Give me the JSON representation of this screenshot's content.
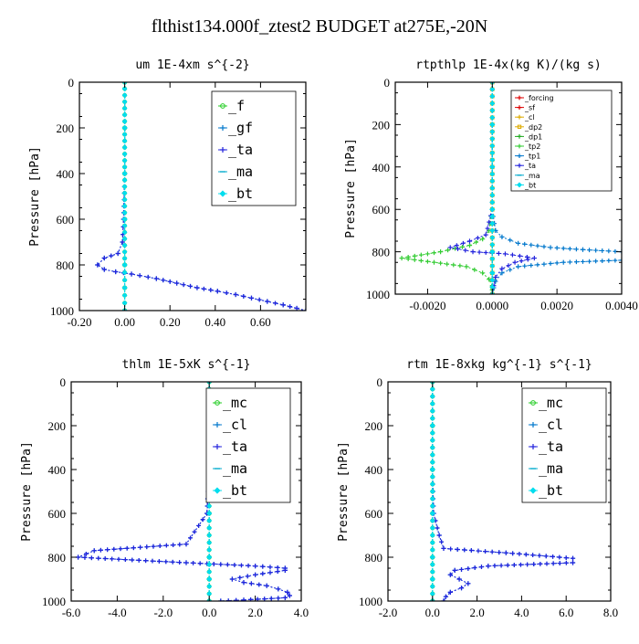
{
  "title": "flthist134.000f_ztest2  BUDGET at275E,-20N",
  "chart_data": [
    {
      "type": "line",
      "title": "um    1E-4xm  s^{-2}",
      "ylabel": "Pressure [hPa]",
      "xlim": [
        -0.2,
        0.8
      ],
      "ylim": [
        1000,
        0
      ],
      "xticks": [
        -0.2,
        0.0,
        0.2,
        0.4,
        0.6
      ],
      "xtick_labels": [
        "-0.20",
        "0.00",
        "0.20",
        "0.40",
        "0.60"
      ],
      "yticks": [
        0,
        200,
        400,
        600,
        800,
        1000
      ],
      "ytick_labels": [
        "0",
        "200",
        "400",
        "600",
        "800",
        "1000"
      ],
      "legend": "top-right",
      "legend_size": "large",
      "series": [
        {
          "name": "_f",
          "color": "#22cc22",
          "marker": "circle",
          "x": [
            0.0,
            0.0,
            0.0,
            0.0,
            0.0,
            0.0,
            0.0
          ],
          "y": [
            0,
            200,
            400,
            600,
            800,
            900,
            1000
          ]
        },
        {
          "name": "_gf",
          "color": "#0077cc",
          "marker": "plus",
          "x": [
            0,
            0,
            0,
            -0.005,
            -0.01,
            -0.03,
            -0.09,
            -0.12,
            -0.09,
            -0.04,
            0.03,
            0.14,
            0.23,
            0.32,
            0.41,
            0.49,
            0.56,
            0.63,
            0.7,
            0.76,
            0.8
          ],
          "y": [
            0,
            200,
            400,
            600,
            700,
            750,
            770,
            800,
            820,
            830,
            840,
            860,
            880,
            900,
            915,
            930,
            945,
            960,
            975,
            990,
            1000
          ]
        },
        {
          "name": "_ta",
          "color": "#2222dd",
          "marker": "plus",
          "x": [
            0,
            0,
            0,
            -0.005,
            -0.01,
            -0.03,
            -0.09,
            -0.12,
            -0.09,
            -0.04,
            0.03,
            0.14,
            0.23,
            0.32,
            0.41,
            0.49,
            0.56,
            0.63,
            0.7,
            0.76,
            0.8
          ],
          "y": [
            0,
            200,
            400,
            600,
            700,
            750,
            770,
            800,
            820,
            830,
            840,
            860,
            880,
            900,
            915,
            930,
            945,
            960,
            975,
            990,
            1000
          ]
        },
        {
          "name": "_ma",
          "color": "#00aacc",
          "marker": "dash",
          "x": [
            0.0,
            0.0,
            0.0,
            0.0,
            0.0,
            0.0,
            0.0
          ],
          "y": [
            0,
            200,
            400,
            600,
            800,
            900,
            1000
          ]
        },
        {
          "name": "_bt",
          "color": "#00ddee",
          "marker": "diamond",
          "x": [
            0.0,
            0.0,
            0.0,
            0.0,
            0.0,
            0.0,
            0.0
          ],
          "y": [
            0,
            200,
            400,
            600,
            800,
            900,
            1000
          ]
        }
      ]
    },
    {
      "type": "line",
      "title": "rtpthlp   1E-4x(kg K)/(kg s)",
      "ylabel": "Pressure [hPa]",
      "xlim": [
        -0.003,
        0.004
      ],
      "ylim": [
        1000,
        0
      ],
      "xticks": [
        -0.002,
        0.0,
        0.002,
        0.004
      ],
      "xtick_labels": [
        "-0.0020",
        "0.0000",
        "0.0020",
        "0.0040"
      ],
      "yticks": [
        0,
        200,
        400,
        600,
        800,
        1000
      ],
      "ytick_labels": [
        "0",
        "200",
        "400",
        "600",
        "800",
        "1000"
      ],
      "legend": "top-right",
      "legend_size": "small",
      "series": [
        {
          "name": "_forcing",
          "color": "#dd0000",
          "marker": "plus",
          "x": [
            0,
            0,
            0,
            0,
            0,
            0,
            0
          ],
          "y": [
            0,
            200,
            400,
            600,
            800,
            900,
            1000
          ]
        },
        {
          "name": "_sf",
          "color": "#dd0000",
          "marker": "plus",
          "x": [
            0,
            0,
            0,
            0,
            0,
            0,
            0
          ],
          "y": [
            0,
            200,
            400,
            600,
            800,
            900,
            1000
          ]
        },
        {
          "name": "_cl",
          "color": "#ddaa00",
          "marker": "plus",
          "x": [
            0,
            0,
            0,
            0,
            0,
            0,
            0
          ],
          "y": [
            0,
            200,
            400,
            600,
            800,
            900,
            1000
          ]
        },
        {
          "name": "_dp2",
          "color": "#ddaa00",
          "marker": "square",
          "x": [
            0,
            0,
            0,
            0,
            0,
            0,
            0
          ],
          "y": [
            0,
            200,
            400,
            600,
            800,
            900,
            1000
          ]
        },
        {
          "name": "_dp1",
          "color": "#22aa22",
          "marker": "plus",
          "x": [
            0,
            0,
            0,
            0,
            0,
            0,
            0
          ],
          "y": [
            0,
            200,
            400,
            600,
            800,
            900,
            1000
          ]
        },
        {
          "name": "_tp2",
          "color": "#33cc33",
          "marker": "plus",
          "x": [
            0,
            0,
            0,
            0,
            -0.0001,
            -0.0003,
            -0.0007,
            -0.0016,
            -0.0028,
            -0.0018,
            -0.0008,
            -0.0003,
            -0.0001,
            0,
            0,
            0
          ],
          "y": [
            0,
            200,
            400,
            600,
            700,
            740,
            770,
            800,
            830,
            850,
            870,
            900,
            930,
            960,
            980,
            1000
          ]
        },
        {
          "name": "_tp1",
          "color": "#0077cc",
          "marker": "plus",
          "x": [
            0,
            0,
            0,
            0,
            0.0001,
            0.0003,
            0.0008,
            0.0018,
            0.0028,
            0.004,
            0.0045,
            0.004,
            0.0022,
            0.0008,
            0.0003,
            0.0001,
            0
          ],
          "y": [
            0,
            200,
            400,
            600,
            700,
            730,
            760,
            780,
            790,
            800,
            825,
            840,
            850,
            870,
            900,
            940,
            1000
          ]
        },
        {
          "name": "_ta",
          "color": "#2222dd",
          "marker": "plus",
          "x": [
            0,
            0,
            0,
            0,
            -0.0002,
            -0.0007,
            -0.0013,
            -0.0006,
            0.0004,
            0.0013,
            0.0007,
            0.0003,
            0.0001,
            0
          ],
          "y": [
            0,
            200,
            400,
            600,
            720,
            750,
            780,
            800,
            810,
            830,
            850,
            880,
            920,
            1000
          ]
        },
        {
          "name": "_ma",
          "color": "#00aacc",
          "marker": "dash",
          "x": [
            0,
            0,
            0,
            0,
            0,
            0,
            0
          ],
          "y": [
            0,
            200,
            400,
            600,
            800,
            900,
            1000
          ]
        },
        {
          "name": "_bt",
          "color": "#00ddee",
          "marker": "diamond",
          "x": [
            0,
            0,
            0,
            0,
            0,
            0,
            0
          ],
          "y": [
            0,
            200,
            400,
            600,
            800,
            900,
            1000
          ]
        }
      ]
    },
    {
      "type": "line",
      "title": "thlm   1E-5xK  s^{-1}",
      "ylabel": "Pressure [hPa]",
      "xlim": [
        -6.0,
        4.0
      ],
      "ylim": [
        1000,
        0
      ],
      "xticks": [
        -6,
        -4,
        -2,
        0,
        2,
        4
      ],
      "xtick_labels": [
        "-6.0",
        "-4.0",
        "-2.0",
        "0.0",
        "2.0",
        "4.0"
      ],
      "yticks": [
        0,
        200,
        400,
        600,
        800,
        1000
      ],
      "ytick_labels": [
        "0",
        "200",
        "400",
        "600",
        "800",
        "1000"
      ],
      "legend": "top-right",
      "legend_size": "large",
      "series": [
        {
          "name": "_mc",
          "color": "#22cc22",
          "marker": "circle",
          "x": [
            0.0,
            0.0,
            0.0,
            0.0,
            0.0,
            0.0,
            0.0
          ],
          "y": [
            0,
            200,
            400,
            600,
            800,
            900,
            1000
          ]
        },
        {
          "name": "_cl",
          "color": "#0077cc",
          "marker": "plus",
          "x": [
            0,
            0,
            0,
            -0.1,
            -1.0,
            -5.0,
            -5.7,
            -1.0,
            2.0,
            3.3,
            3.3,
            2.0,
            1.0,
            1.5,
            2.5,
            3.0,
            3.4,
            3.5,
            3.3,
            1.5,
            0.5
          ],
          "y": [
            0,
            200,
            400,
            600,
            740,
            770,
            800,
            825,
            840,
            850,
            860,
            880,
            900,
            915,
            930,
            945,
            960,
            975,
            985,
            995,
            1000
          ]
        },
        {
          "name": "_ta",
          "color": "#2222dd",
          "marker": "plus",
          "x": [
            0,
            0,
            0,
            -0.1,
            -1.0,
            -5.0,
            -5.7,
            -1.0,
            2.0,
            3.3,
            3.3,
            2.0,
            1.0,
            1.5,
            2.5,
            3.0,
            3.4,
            3.5,
            3.3,
            1.5,
            0.5
          ],
          "y": [
            0,
            200,
            400,
            600,
            740,
            770,
            800,
            825,
            840,
            850,
            860,
            880,
            900,
            915,
            930,
            945,
            960,
            975,
            985,
            995,
            1000
          ]
        },
        {
          "name": "_ma",
          "color": "#00aacc",
          "marker": "dash",
          "x": [
            0.0,
            0.0,
            0.0,
            0.0,
            0.0,
            0.0,
            0.0
          ],
          "y": [
            0,
            200,
            400,
            600,
            800,
            900,
            1000
          ]
        },
        {
          "name": "_bt",
          "color": "#00ddee",
          "marker": "diamond",
          "x": [
            0.0,
            0.0,
            0.0,
            0.0,
            0.0,
            0.0,
            0.0
          ],
          "y": [
            0,
            200,
            400,
            600,
            800,
            900,
            1000
          ]
        }
      ]
    },
    {
      "type": "line",
      "title": "rtm   1E-8xkg kg^{-1} s^{-1}",
      "ylabel": "Pressure [hPa]",
      "xlim": [
        -2.0,
        8.0
      ],
      "ylim": [
        1000,
        0
      ],
      "xticks": [
        -2,
        0,
        2,
        4,
        6,
        8
      ],
      "xtick_labels": [
        "-2.0",
        "0.0",
        "2.0",
        "4.0",
        "6.0",
        "8.0"
      ],
      "yticks": [
        0,
        200,
        400,
        600,
        800,
        1000
      ],
      "ytick_labels": [
        "0",
        "200",
        "400",
        "600",
        "800",
        "1000"
      ],
      "legend": "top-right",
      "legend_size": "large",
      "series": [
        {
          "name": "_mc",
          "color": "#22cc22",
          "marker": "circle",
          "x": [
            0.0,
            0.0,
            0.0,
            0.0,
            0.0,
            0.0,
            0.0
          ],
          "y": [
            0,
            200,
            400,
            600,
            800,
            900,
            1000
          ]
        },
        {
          "name": "_cl",
          "color": "#0077cc",
          "marker": "plus",
          "x": [
            0,
            0,
            0,
            0.05,
            0.3,
            0.5,
            3.3,
            6.3,
            6.3,
            2.5,
            1.0,
            0.8,
            1.2,
            1.6,
            1.3,
            0.8,
            0.6,
            0.5
          ],
          "y": [
            0,
            200,
            400,
            600,
            700,
            760,
            780,
            805,
            825,
            840,
            860,
            880,
            900,
            920,
            940,
            960,
            980,
            1000
          ]
        },
        {
          "name": "_ta",
          "color": "#2222dd",
          "marker": "plus",
          "x": [
            0,
            0,
            0,
            0.05,
            0.3,
            0.5,
            3.3,
            6.3,
            6.3,
            2.5,
            1.0,
            0.8,
            1.2,
            1.6,
            1.3,
            0.8,
            0.6,
            0.5
          ],
          "y": [
            0,
            200,
            400,
            600,
            700,
            760,
            780,
            805,
            825,
            840,
            860,
            880,
            900,
            920,
            940,
            960,
            980,
            1000
          ]
        },
        {
          "name": "_ma",
          "color": "#00aacc",
          "marker": "dash",
          "x": [
            0.0,
            0.0,
            0.0,
            0.0,
            0.0,
            0.0,
            0.0
          ],
          "y": [
            0,
            200,
            400,
            600,
            800,
            900,
            1000
          ]
        },
        {
          "name": "_bt",
          "color": "#00ddee",
          "marker": "diamond",
          "x": [
            0.0,
            0.0,
            0.0,
            0.0,
            0.0,
            0.0,
            0.0
          ],
          "y": [
            0,
            200,
            400,
            600,
            800,
            900,
            1000
          ]
        }
      ]
    }
  ]
}
